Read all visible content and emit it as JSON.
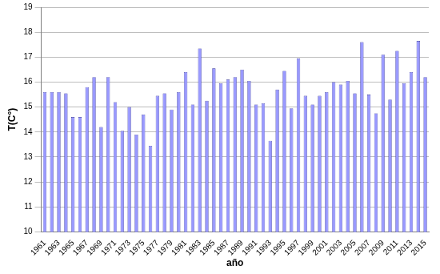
{
  "chart_data": {
    "type": "bar",
    "x_label": "año",
    "y_label": "T(C°)",
    "categories": [
      "1961",
      null,
      "1963",
      null,
      "1965",
      null,
      "1967",
      null,
      "1969",
      null,
      "1971",
      null,
      "1973",
      null,
      "1975",
      null,
      "1977",
      null,
      "1979",
      null,
      "1981",
      null,
      "1983",
      null,
      "1985",
      null,
      "1987",
      null,
      "1989",
      null,
      "1991",
      null,
      "1993",
      null,
      "1995",
      null,
      "1997",
      null,
      "1999",
      null,
      "2001",
      null,
      "2003",
      null,
      "2005",
      null,
      "2007",
      null,
      "2009",
      null,
      "2011",
      null,
      "2013",
      null,
      "2015"
    ],
    "values": [
      15.6,
      15.6,
      15.6,
      15.55,
      14.6,
      14.6,
      15.8,
      16.2,
      14.2,
      16.2,
      15.2,
      14.05,
      15.0,
      13.9,
      14.7,
      13.45,
      15.45,
      15.55,
      14.9,
      15.6,
      16.4,
      15.1,
      17.35,
      15.25,
      16.55,
      15.95,
      16.1,
      16.2,
      16.5,
      16.05,
      15.1,
      15.15,
      13.65,
      15.7,
      16.45,
      14.95,
      16.95,
      15.45,
      15.1,
      15.45,
      15.6,
      16.0,
      15.9,
      16.05,
      15.55,
      17.6,
      15.5,
      14.75,
      17.1,
      15.3,
      17.25,
      15.95,
      16.4,
      17.65,
      16.2
    ],
    "color": "#9999ff",
    "ylim": [
      10,
      19
    ],
    "yticks": [
      10,
      11,
      12,
      13,
      14,
      15,
      16,
      17,
      18,
      19
    ],
    "grid": true
  }
}
